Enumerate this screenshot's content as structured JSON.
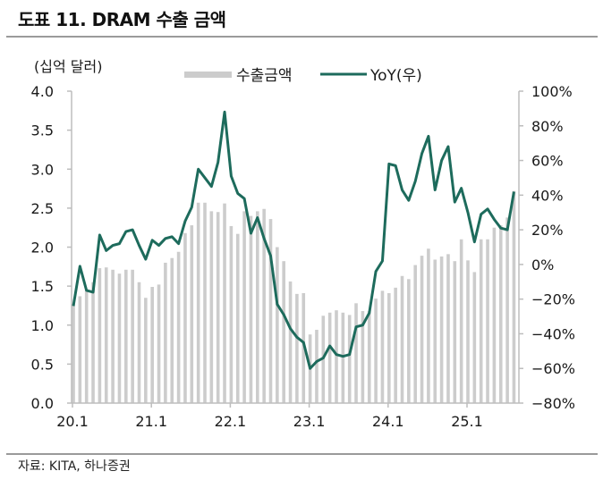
{
  "header": {
    "title": "도표 11. DRAM 수출 금액"
  },
  "footer": {
    "source": "자료: KITA, 하나증권"
  },
  "colors": {
    "bar": "#cccccc",
    "line": "#1d6b5c",
    "axis": "#bdbdbd",
    "rule": "#9a9a9a"
  },
  "chart_data": {
    "type": "bar+line",
    "title": "DRAM 수출 금액",
    "y_left_unit": "(십억 달러)",
    "y_left_range": [
      0.0,
      4.0
    ],
    "y_left_ticks": [
      "0.0",
      "0.5",
      "1.0",
      "1.5",
      "2.0",
      "2.5",
      "3.0",
      "3.5",
      "4.0"
    ],
    "y_right_range": [
      -80,
      100
    ],
    "y_right_ticks": [
      "-80%",
      "-60%",
      "-40%",
      "-20%",
      "0%",
      "20%",
      "40%",
      "60%",
      "80%",
      "100%"
    ],
    "x_tick_labels": [
      "20.1",
      "21.1",
      "22.1",
      "23.1",
      "24.1",
      "25.1"
    ],
    "x_tick_months": [
      0,
      12,
      24,
      36,
      48,
      60
    ],
    "legend": [
      {
        "name": "수출금액",
        "kind": "bar"
      },
      {
        "name": "YoY(우)",
        "kind": "line"
      }
    ],
    "legend_position": "top-center",
    "grid": false,
    "series": [
      {
        "name": "수출금액",
        "axis": "left",
        "values": [
          1.27,
          1.37,
          1.45,
          1.55,
          1.73,
          1.74,
          1.71,
          1.66,
          1.71,
          1.71,
          1.55,
          1.35,
          1.49,
          1.52,
          1.8,
          1.86,
          1.94,
          2.18,
          2.28,
          2.57,
          2.57,
          2.46,
          2.45,
          2.56,
          2.27,
          2.17,
          2.46,
          2.4,
          2.46,
          2.49,
          2.36,
          2.0,
          1.82,
          1.56,
          1.4,
          1.41,
          0.88,
          0.94,
          1.12,
          1.16,
          1.19,
          1.16,
          1.13,
          1.28,
          1.18,
          1.18,
          1.34,
          1.44,
          1.41,
          1.48,
          1.63,
          1.59,
          1.77,
          1.89,
          1.98,
          1.84,
          1.88,
          1.91,
          1.82,
          2.1,
          1.83,
          1.68,
          2.1,
          2.1,
          2.25,
          2.28,
          2.38,
          2.72
        ]
      },
      {
        "name": "YoY(우)",
        "axis": "right",
        "values": [
          -24,
          -1,
          -15,
          -16,
          17,
          8,
          11,
          12,
          19,
          20,
          11,
          3,
          14,
          11,
          15,
          16,
          12,
          25,
          33,
          55,
          50,
          45,
          59,
          88,
          51,
          41,
          38,
          18,
          27,
          15,
          5,
          -23,
          -29,
          -37,
          -42,
          -45,
          -60,
          -56,
          -54,
          -47,
          -52,
          -53,
          -52,
          -36,
          -35,
          -28,
          -4,
          2,
          58,
          57,
          43,
          37,
          48,
          64,
          74,
          43,
          60,
          68,
          36,
          44,
          30,
          13,
          29,
          32,
          26,
          21,
          20,
          42
        ]
      }
    ]
  }
}
